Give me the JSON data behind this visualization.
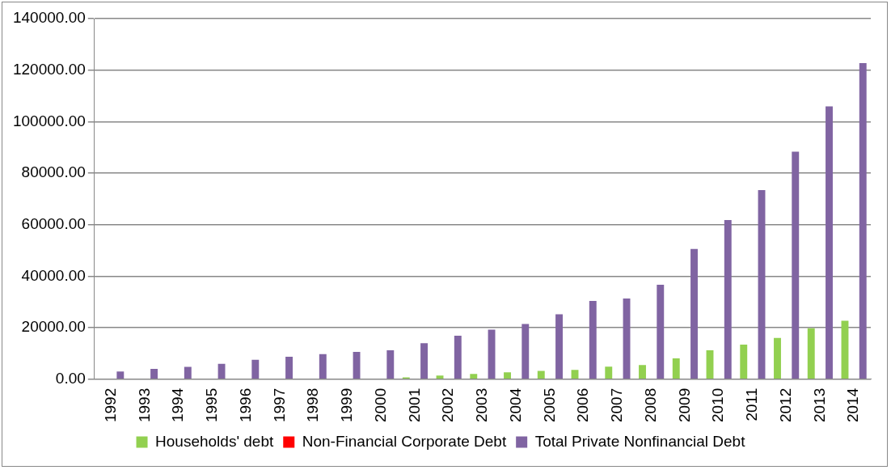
{
  "chart_data": {
    "type": "bar",
    "categories": [
      "1992",
      "1993",
      "1994",
      "1995",
      "1996",
      "1997",
      "1998",
      "1999",
      "2000",
      "2001",
      "2002",
      "2003",
      "2004",
      "2005",
      "2006",
      "2007",
      "2008",
      "2009",
      "2010",
      "2011",
      "2012",
      "2013",
      "2014"
    ],
    "series": [
      {
        "name": "Households' debt",
        "color": "#92d050",
        "values": [
          0,
          0,
          0,
          0,
          0,
          0,
          0,
          0,
          0,
          700,
          1400,
          2000,
          2700,
          3200,
          3600,
          4900,
          5500,
          8100,
          11200,
          13400,
          16000,
          19800,
          22700
        ]
      },
      {
        "name": "Non-Financial Corporate Debt",
        "color": "#ff0000",
        "values": [
          null,
          null,
          null,
          null,
          null,
          null,
          null,
          null,
          null,
          null,
          null,
          null,
          null,
          null,
          null,
          null,
          null,
          null,
          null,
          null,
          null,
          null,
          null
        ]
      },
      {
        "name": "Total Private Nonfinancial Debt",
        "color": "#8064a2",
        "values": [
          3000,
          4000,
          4800,
          6000,
          7500,
          8700,
          9700,
          10600,
          11200,
          14000,
          16900,
          19200,
          21400,
          25200,
          30400,
          31300,
          36700,
          50600,
          61800,
          73400,
          88300,
          105900,
          122700
        ]
      }
    ],
    "ylim": [
      0,
      140000
    ],
    "yticks": [
      {
        "value": 0,
        "label": "0.00"
      },
      {
        "value": 20000,
        "label": "20000.00"
      },
      {
        "value": 40000,
        "label": "40000.00"
      },
      {
        "value": 60000,
        "label": "60000.00"
      },
      {
        "value": 80000,
        "label": "80000.00"
      },
      {
        "value": 100000,
        "label": "100000.00"
      },
      {
        "value": 120000,
        "label": "120000.00"
      },
      {
        "value": 140000,
        "label": "140000.00"
      }
    ],
    "grid": "y",
    "legend": "bottom"
  }
}
